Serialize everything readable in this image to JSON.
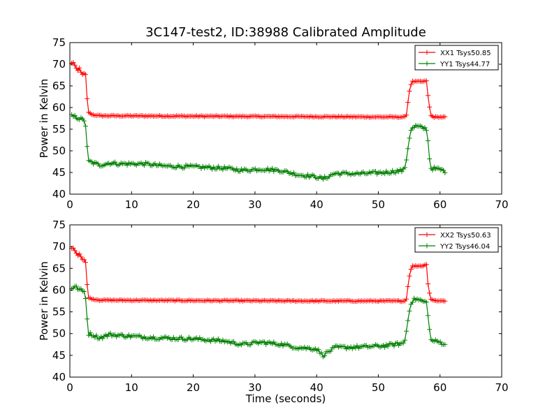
{
  "figure": {
    "title": "3C147-test2, ID:38988 Calibrated Amplitude",
    "xlabel": "Time (seconds)"
  },
  "colors": {
    "xx": "#ff0000",
    "yy": "#008000",
    "axes": "#000000",
    "background": "#ffffff"
  },
  "chart_data": [
    {
      "type": "line",
      "ylabel": "Power in Kelvin",
      "xlim": [
        0,
        70
      ],
      "ylim": [
        40,
        75
      ],
      "xticks": [
        0,
        10,
        20,
        30,
        40,
        50,
        60,
        70
      ],
      "yticks": [
        40,
        45,
        50,
        55,
        60,
        65,
        70,
        75
      ],
      "grid": false,
      "marker": "+",
      "legend_position": "top-right",
      "series": [
        {
          "name": "XX1 Tsys50.85",
          "color": "#ff0000",
          "keypoints": [
            [
              0.3,
              70.2
            ],
            [
              0.6,
              70.5
            ],
            [
              1.0,
              69.0
            ],
            [
              1.3,
              68.5
            ],
            [
              1.6,
              69.2
            ],
            [
              1.9,
              67.8
            ],
            [
              2.2,
              67.3
            ],
            [
              2.5,
              68.9
            ],
            [
              2.7,
              63.5
            ],
            [
              3.0,
              59.0
            ],
            [
              3.3,
              58.6
            ],
            [
              3.8,
              58.3
            ],
            [
              5,
              58.1
            ],
            [
              20,
              58.0
            ],
            [
              40,
              57.9
            ],
            [
              54.5,
              57.8
            ],
            [
              55.0,
              63.5
            ],
            [
              55.4,
              66.0
            ],
            [
              57.4,
              66.0
            ],
            [
              57.8,
              66.2
            ],
            [
              58.1,
              62.0
            ],
            [
              58.5,
              58.2
            ],
            [
              59,
              57.8
            ],
            [
              61,
              57.8
            ]
          ],
          "noise": 0.12
        },
        {
          "name": "YY1 Tsys44.77",
          "color": "#008000",
          "keypoints": [
            [
              0.3,
              58.0
            ],
            [
              1.0,
              57.8
            ],
            [
              2.0,
              57.2
            ],
            [
              2.5,
              57.0
            ],
            [
              2.7,
              52.3
            ],
            [
              3.0,
              47.6
            ],
            [
              3.6,
              47.3
            ],
            [
              4.8,
              46.7
            ],
            [
              6.5,
              47.2
            ],
            [
              8,
              47.0
            ],
            [
              12,
              47.0
            ],
            [
              15,
              46.5
            ],
            [
              20,
              46.3
            ],
            [
              25,
              46.0
            ],
            [
              28,
              45.5
            ],
            [
              31,
              45.8
            ],
            [
              34,
              45.5
            ],
            [
              37,
              44.5
            ],
            [
              40,
              44.0
            ],
            [
              41,
              43.5
            ],
            [
              43,
              44.8
            ],
            [
              47,
              44.7
            ],
            [
              51,
              45.0
            ],
            [
              54.2,
              45.5
            ],
            [
              54.6,
              48.5
            ],
            [
              55.2,
              54.7
            ],
            [
              56,
              55.7
            ],
            [
              57.5,
              55.2
            ],
            [
              57.9,
              55.0
            ],
            [
              58.2,
              49.5
            ],
            [
              58.5,
              46.0
            ],
            [
              60,
              45.7
            ],
            [
              61,
              45.2
            ]
          ],
          "noise": 0.4
        }
      ]
    },
    {
      "type": "line",
      "ylabel": "Power in Kelvin",
      "xlabel": "Time (seconds)",
      "xlim": [
        0,
        70
      ],
      "ylim": [
        40,
        75
      ],
      "xticks": [
        0,
        10,
        20,
        30,
        40,
        50,
        60,
        70
      ],
      "yticks": [
        40,
        45,
        50,
        55,
        60,
        65,
        70,
        75
      ],
      "grid": false,
      "marker": "+",
      "legend_position": "top-right",
      "series": [
        {
          "name": "XX2 Tsys50.63",
          "color": "#ff0000",
          "keypoints": [
            [
              0.3,
              69.5
            ],
            [
              0.6,
              69.8
            ],
            [
              1.0,
              68.6
            ],
            [
              1.3,
              68.0
            ],
            [
              1.6,
              68.5
            ],
            [
              1.9,
              67.3
            ],
            [
              2.2,
              66.7
            ],
            [
              2.5,
              67.5
            ],
            [
              2.7,
              62.7
            ],
            [
              3.0,
              58.4
            ],
            [
              3.3,
              58.1
            ],
            [
              3.8,
              57.9
            ],
            [
              5,
              57.7
            ],
            [
              20,
              57.6
            ],
            [
              40,
              57.5
            ],
            [
              54.5,
              57.5
            ],
            [
              55.0,
              63.0
            ],
            [
              55.4,
              65.5
            ],
            [
              57.4,
              65.6
            ],
            [
              57.8,
              66.0
            ],
            [
              58.1,
              60.6
            ],
            [
              58.5,
              58.0
            ],
            [
              59,
              57.6
            ],
            [
              61,
              57.5
            ]
          ],
          "noise": 0.12
        },
        {
          "name": "YY2 Tsys46.04",
          "color": "#008000",
          "keypoints": [
            [
              0.3,
              60.5
            ],
            [
              0.8,
              60.8
            ],
            [
              1.5,
              60.2
            ],
            [
              2.0,
              59.8
            ],
            [
              2.5,
              59.5
            ],
            [
              2.7,
              55.0
            ],
            [
              3.0,
              50.0
            ],
            [
              3.6,
              49.8
            ],
            [
              4.8,
              49.0
            ],
            [
              6.5,
              49.8
            ],
            [
              8,
              49.6
            ],
            [
              12,
              49.2
            ],
            [
              15,
              49.0
            ],
            [
              20,
              48.8
            ],
            [
              25,
              48.3
            ],
            [
              28,
              47.5
            ],
            [
              31,
              48.0
            ],
            [
              34,
              47.6
            ],
            [
              37,
              46.8
            ],
            [
              40,
              46.5
            ],
            [
              41,
              45.0
            ],
            [
              43,
              46.8
            ],
            [
              47,
              46.9
            ],
            [
              51,
              47.2
            ],
            [
              54.2,
              47.8
            ],
            [
              54.6,
              51.0
            ],
            [
              55.2,
              57.0
            ],
            [
              56,
              58.0
            ],
            [
              57.5,
              57.3
            ],
            [
              57.9,
              57.0
            ],
            [
              58.2,
              52.0
            ],
            [
              58.5,
              48.5
            ],
            [
              60,
              48.0
            ],
            [
              61,
              47.5
            ]
          ],
          "noise": 0.4
        }
      ]
    }
  ]
}
